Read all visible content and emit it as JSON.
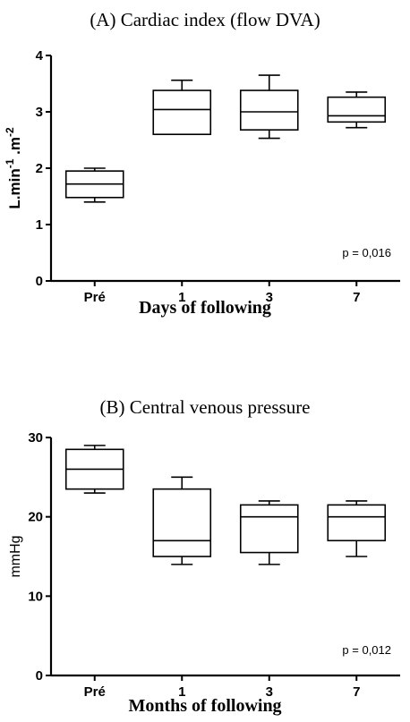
{
  "chart_data": [
    {
      "type": "box",
      "title": "(A) Cardiac index (flow DVA)",
      "xlabel": "Days of following",
      "ylabel": "L.min-1.m-2",
      "ylabel_parts": [
        "L.min",
        "-1",
        " .m",
        "-2"
      ],
      "ylim": [
        0,
        4
      ],
      "yticks": [
        0,
        1,
        2,
        3,
        4
      ],
      "categories": [
        "Pré",
        "1",
        "3",
        "7"
      ],
      "boxes": [
        {
          "min": 1.4,
          "q1": 1.48,
          "median": 1.72,
          "q3": 1.95,
          "max": 2.0
        },
        {
          "min": 2.6,
          "q1": 2.6,
          "median": 3.04,
          "q3": 3.38,
          "max": 3.56
        },
        {
          "min": 2.53,
          "q1": 2.68,
          "median": 3.0,
          "q3": 3.38,
          "max": 3.65
        },
        {
          "min": 2.72,
          "q1": 2.82,
          "median": 2.93,
          "q3": 3.26,
          "max": 3.35
        }
      ],
      "annotation": "p = 0,016"
    },
    {
      "type": "box",
      "title": "(B) Central venous pressure",
      "xlabel": "Months of following",
      "ylabel": "mmHg",
      "ylim": [
        0,
        30
      ],
      "yticks": [
        0,
        10,
        20,
        30
      ],
      "categories": [
        "Pré",
        "1",
        "3",
        "7"
      ],
      "boxes": [
        {
          "min": 23,
          "q1": 23.5,
          "median": 26,
          "q3": 28.5,
          "max": 29
        },
        {
          "min": 14,
          "q1": 15,
          "median": 17,
          "q3": 23.5,
          "max": 25
        },
        {
          "min": 14,
          "q1": 15.5,
          "median": 20,
          "q3": 21.5,
          "max": 22
        },
        {
          "min": 15,
          "q1": 17,
          "median": 20,
          "q3": 21.5,
          "max": 22
        }
      ],
      "annotation": "p = 0,012"
    }
  ]
}
